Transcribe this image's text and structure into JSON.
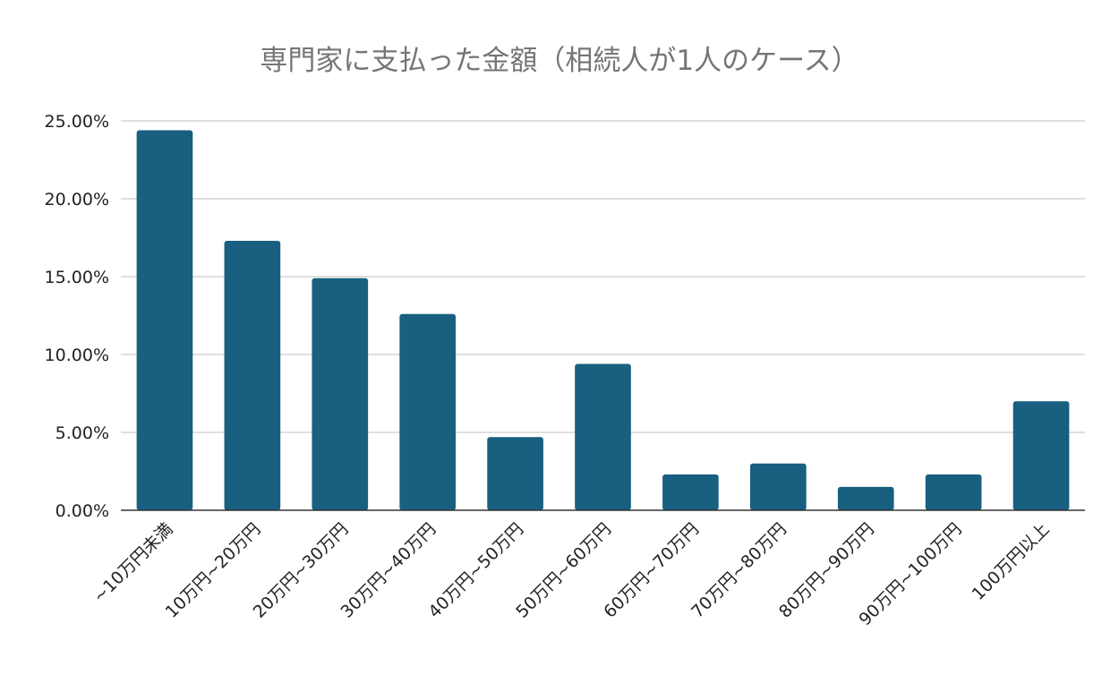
{
  "chart_data": {
    "type": "bar",
    "title": "専門家に支払った金額（相続人が1人のケース）",
    "xlabel": "",
    "ylabel": "",
    "categories": [
      "~10万円未満",
      "10万円~20万円",
      "20万円~30万円",
      "30万円~40万円",
      "40万円~50万円",
      "50万円~60万円",
      "60万円~70万円",
      "70万円~80万円",
      "80万円~90万円",
      "90万円~100万円",
      "100万円以上"
    ],
    "values": [
      24.4,
      17.3,
      14.9,
      12.6,
      4.7,
      9.4,
      2.3,
      3.0,
      1.5,
      2.3,
      7.0
    ],
    "value_format": "percent",
    "ylim": [
      0,
      25
    ],
    "yticks": [
      0,
      5,
      10,
      15,
      20,
      25
    ],
    "ytick_labels": [
      "0.00%",
      "5.00%",
      "10.00%",
      "15.00%",
      "20.00%",
      "25.00%"
    ],
    "grid": true,
    "legend": "none",
    "bar_color": "#185f80"
  }
}
